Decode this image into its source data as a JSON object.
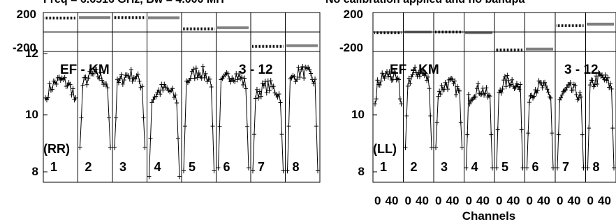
{
  "header": {
    "left": "Freq = 6.6516 GHz, Bw = 4.000 MH",
    "right": "No calibration applied and no bandpa"
  },
  "chart_data": [
    {
      "type": "line",
      "panel": "left",
      "polarization": "(RR)",
      "baseline_label": "EF - KM",
      "right_label": "3 - 12",
      "phase_axis": {
        "ticks": [
          "200",
          "-200"
        ],
        "ylim": [
          -250,
          250
        ]
      },
      "amp_axis": {
        "ticks": [
          "12",
          "10",
          "8"
        ],
        "ylim": [
          7.8,
          12.3
        ]
      },
      "subbands": [
        "1",
        "2",
        "3",
        "4",
        "5",
        "6",
        "7",
        "8"
      ],
      "phase_by_subband": [
        180,
        185,
        185,
        183,
        40,
        55,
        -185,
        -175
      ],
      "amp_plateau": [
        11.3,
        11.5,
        11.5,
        11.0,
        11.6,
        11.5,
        11.1,
        11.6
      ],
      "amp_dip_low": [
        10.7,
        9.0,
        9.0,
        8.0,
        8.2,
        8.3,
        8.2,
        8.2
      ],
      "channels_per_subband": 64
    },
    {
      "type": "line",
      "panel": "right",
      "polarization": "(LL)",
      "baseline_label": "EF - KM",
      "right_label": "3 - 12",
      "phase_axis": {
        "ticks": [
          "200",
          "-200"
        ],
        "ylim": [
          -250,
          250
        ]
      },
      "amp_axis": {
        "ticks": [
          "10",
          "8"
        ],
        "ylim": [
          7.8,
          12.3
        ]
      },
      "subbands": [
        "1",
        "2",
        "3",
        "4",
        "5",
        "6",
        "7",
        "8"
      ],
      "phase_by_subband": [
        -10,
        0,
        0,
        -10,
        -230,
        -220,
        80,
        100
      ],
      "amp_plateau": [
        11.5,
        11.6,
        11.2,
        11.0,
        11.3,
        11.1,
        11.0,
        11.4
      ],
      "amp_dip_low": [
        10.5,
        9.0,
        9.0,
        8.3,
        8.3,
        8.3,
        8.3,
        8.3
      ],
      "channels_per_subband": 64
    }
  ],
  "x_axis": {
    "tick_labels": [
      "0",
      "40",
      "0",
      "40",
      "0",
      "40",
      "0",
      "40",
      "0",
      "40",
      "0",
      "40",
      "0",
      "40",
      "0",
      "40"
    ],
    "label": "Channels"
  }
}
